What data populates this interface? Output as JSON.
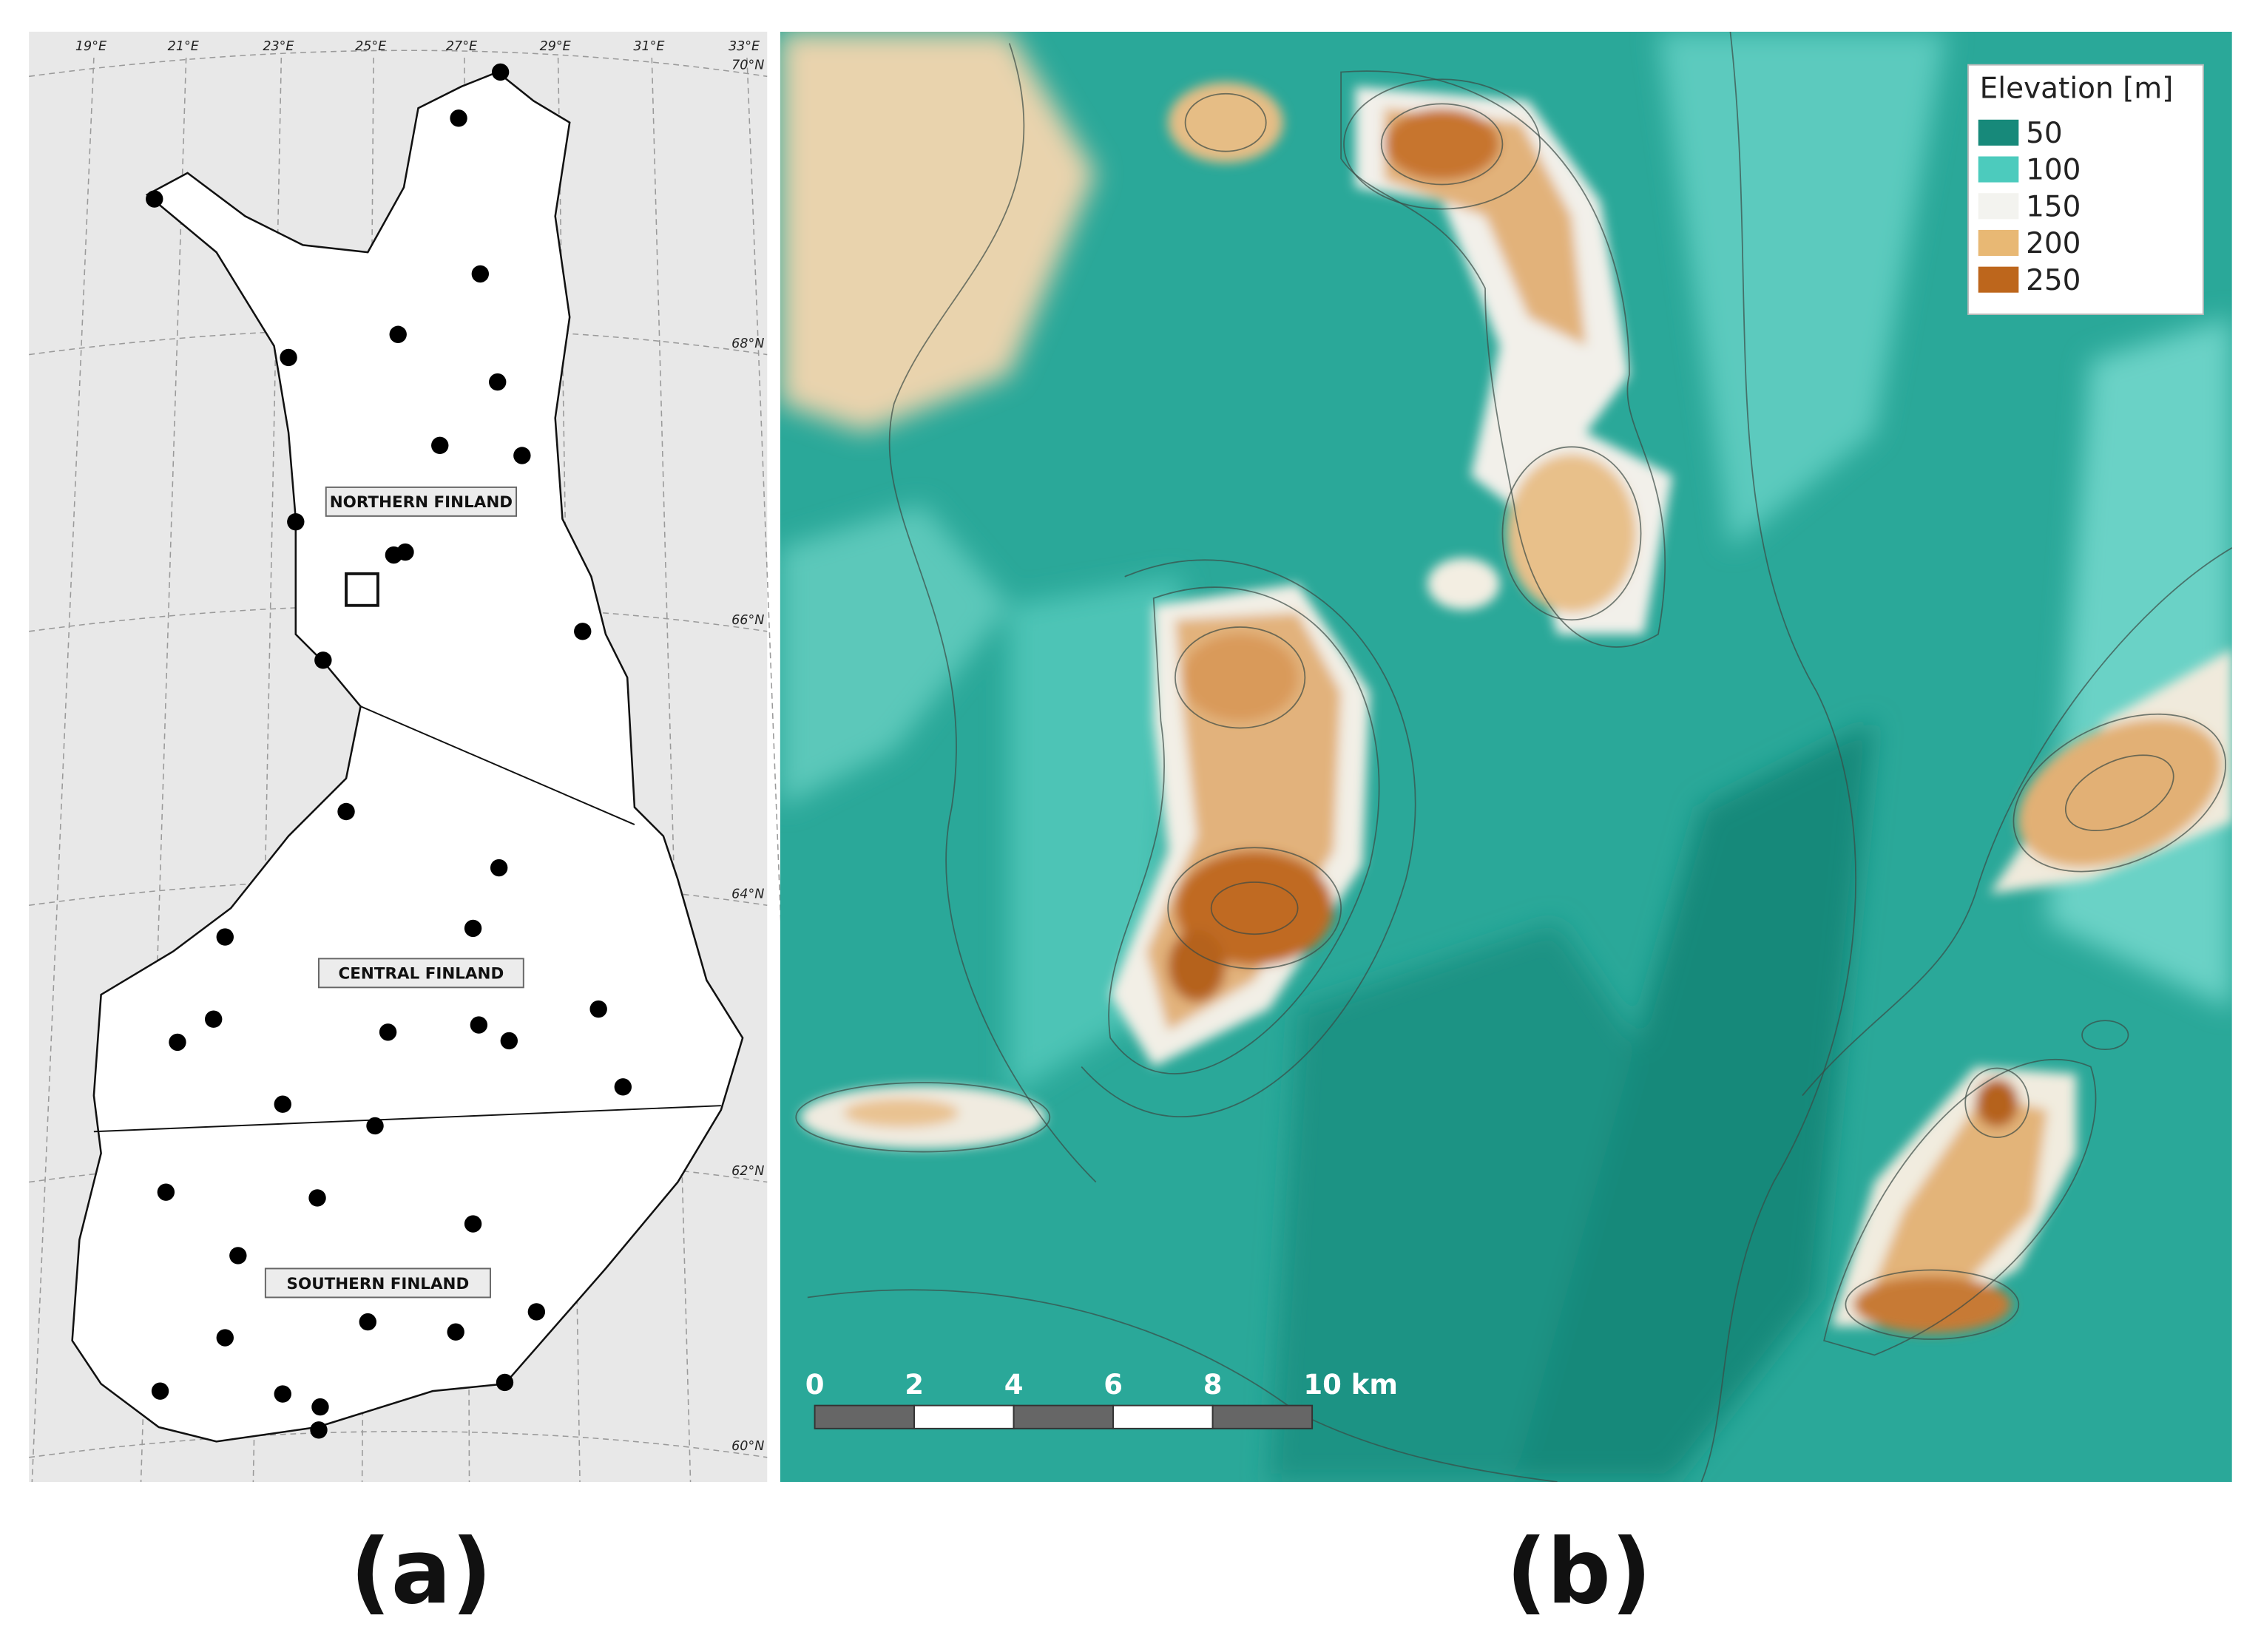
{
  "panel_a": {
    "longitude_labels": [
      "19°E",
      "21°E",
      "23°E",
      "25°E",
      "27°E",
      "29°E",
      "31°E",
      "33°E"
    ],
    "latitude_labels": [
      "70°N",
      "68°N",
      "66°N",
      "64°N",
      "62°N",
      "60°N"
    ],
    "regions": [
      "NORTHERN FINLAND",
      "CENTRAL FINLAND",
      "SOUTHERN FINLAND"
    ],
    "caption": "(a)"
  },
  "panel_b": {
    "legend": {
      "title": "Elevation [m]",
      "entries": [
        {
          "label": "50",
          "color": "#17897a"
        },
        {
          "label": "100",
          "color": "#4ccbbd"
        },
        {
          "label": "150",
          "color": "#f3f3ef"
        },
        {
          "label": "200",
          "color": "#e8b874"
        },
        {
          "label": "250",
          "color": "#bd661c"
        }
      ]
    },
    "scale_bar": {
      "labels": [
        "0",
        "2",
        "4",
        "6",
        "8",
        "10 km"
      ]
    },
    "caption": "(b)"
  }
}
